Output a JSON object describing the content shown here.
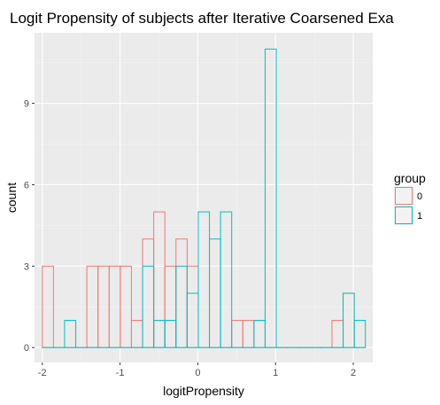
{
  "chart_data": {
    "type": "histogram",
    "title": "Logit Propensity of subjects after Iterative Coarsened Exa",
    "xlabel": "logitPropensity",
    "ylabel": "count",
    "xlim": [
      -2.1,
      2.25
    ],
    "ylim": [
      -0.55,
      11.6
    ],
    "x_ticks": [
      -2,
      -1,
      0,
      1,
      2
    ],
    "y_ticks": [
      0,
      3,
      6,
      9
    ],
    "grid": true,
    "legend": {
      "title": "group",
      "placement": "right"
    },
    "bin_start": -2.0,
    "bin_width": 0.1433,
    "series": [
      {
        "name": "0",
        "color": "#F8766D",
        "counts": [
          3,
          0,
          0,
          0,
          3,
          3,
          3,
          3,
          1,
          4,
          5,
          3,
          4,
          3,
          0,
          0,
          0,
          1,
          1,
          1,
          0,
          0,
          0,
          0,
          0,
          0,
          1,
          2,
          0
        ]
      },
      {
        "name": "1",
        "color": "#00BFC4",
        "counts": [
          0,
          0,
          1,
          0,
          0,
          0,
          0,
          0,
          0,
          3,
          1,
          1,
          3,
          2,
          5,
          4,
          5,
          0,
          0,
          1,
          11,
          0,
          0,
          0,
          0,
          0,
          0,
          2,
          1
        ]
      }
    ]
  }
}
